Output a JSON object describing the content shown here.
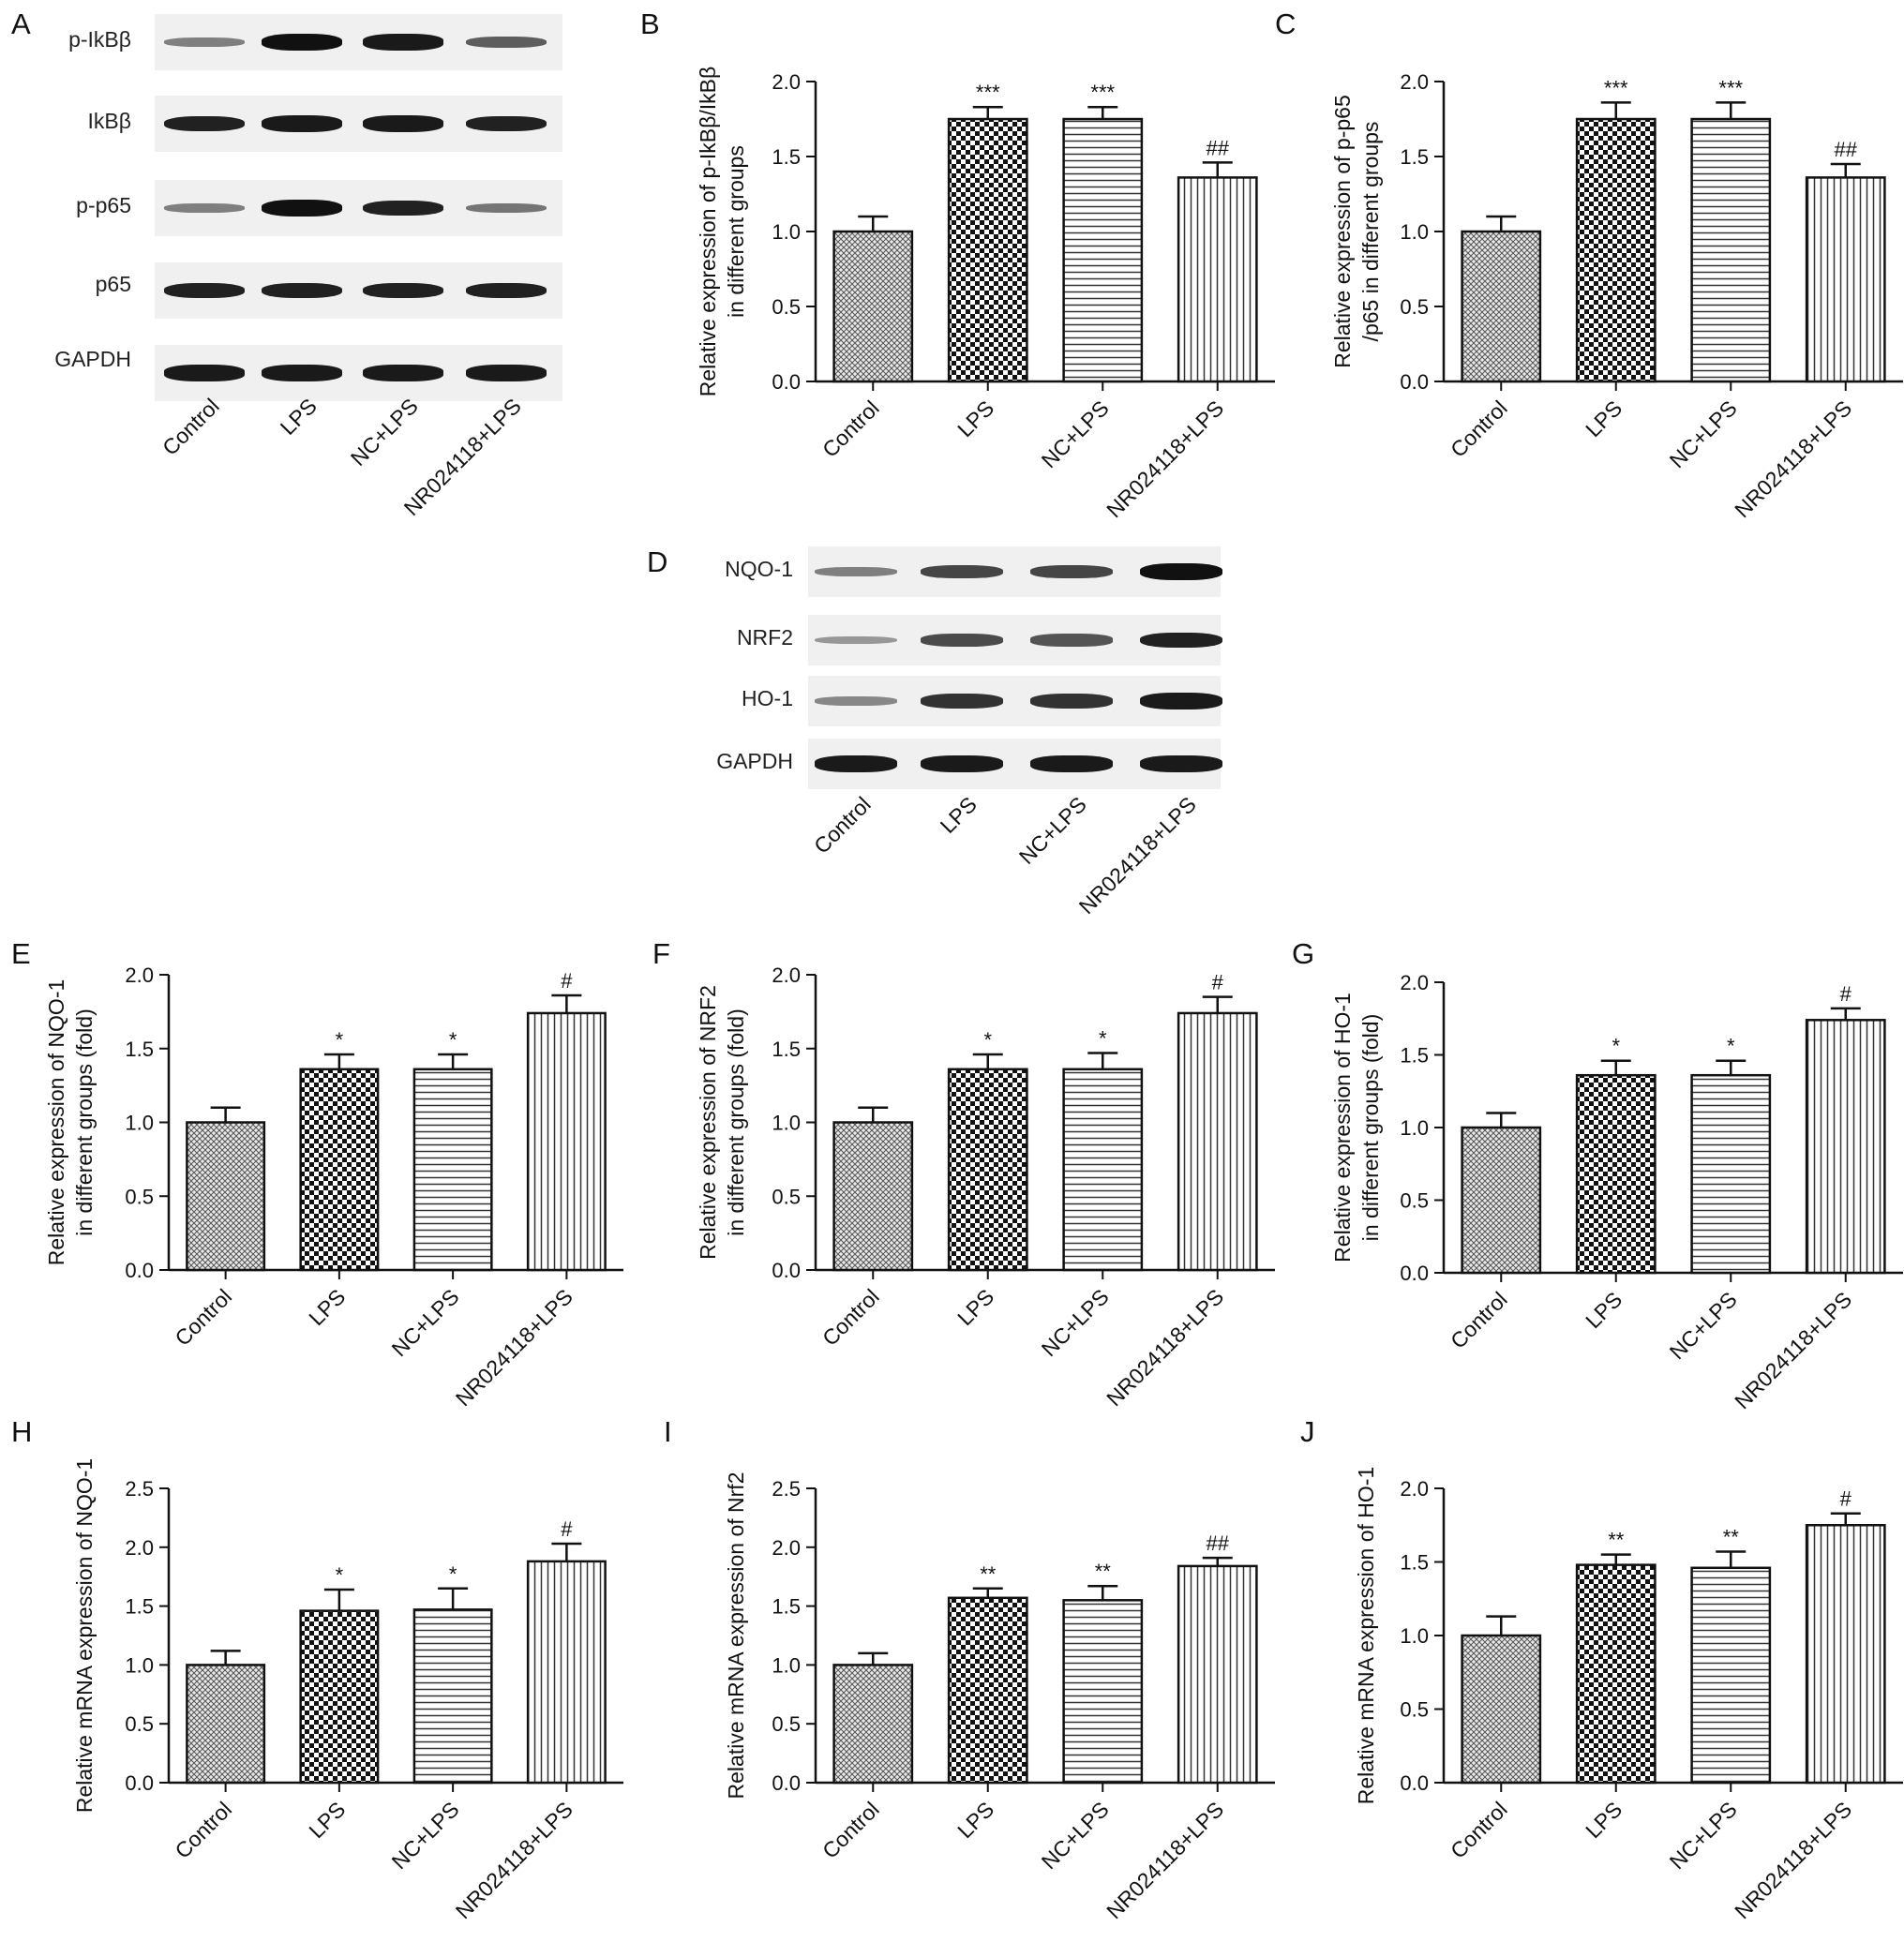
{
  "panels": {
    "A": "A",
    "B": "B",
    "C": "C",
    "D": "D",
    "E": "E",
    "F": "F",
    "G": "G",
    "H": "H",
    "I": "I",
    "J": "J"
  },
  "blot_A": {
    "rows": [
      "p-IkBβ",
      "IkBβ",
      "p-p65",
      "p65",
      "GAPDH"
    ],
    "lanes": [
      "Control",
      "LPS",
      "NC+LPS",
      "NR024118+LPS"
    ],
    "intensity": [
      [
        0.35,
        1.0,
        0.95,
        0.55
      ],
      [
        0.9,
        0.95,
        0.95,
        0.9
      ],
      [
        0.35,
        1.0,
        0.9,
        0.4
      ],
      [
        0.9,
        0.9,
        0.9,
        0.9
      ],
      [
        0.95,
        0.95,
        0.95,
        0.95
      ]
    ]
  },
  "blot_D": {
    "rows": [
      "NQO-1",
      "NRF2",
      "HO-1",
      "GAPDH"
    ],
    "lanes": [
      "Control",
      "LPS",
      "NC+LPS",
      "NR024118+LPS"
    ],
    "intensity": [
      [
        0.35,
        0.7,
        0.7,
        1.0
      ],
      [
        0.2,
        0.65,
        0.6,
        0.9
      ],
      [
        0.3,
        0.8,
        0.8,
        0.95
      ],
      [
        0.95,
        0.95,
        0.95,
        0.95
      ]
    ]
  },
  "colors": {
    "bar_stroke": "#111111",
    "bar_fill": "#ffffff"
  },
  "chart_data": [
    {
      "panel": "B",
      "type": "bar",
      "categories": [
        "Control",
        "LPS",
        "NC+LPS",
        "NR024118+LPS"
      ],
      "values": [
        1.0,
        1.75,
        1.75,
        1.36
      ],
      "errors": [
        0.1,
        0.08,
        0.08,
        0.1
      ],
      "annotations": [
        "",
        "***",
        "***",
        "##"
      ],
      "ylabel_lines": [
        "Relative expression of p-IkBβ/IkBβ",
        "in different groups"
      ],
      "ylim": [
        0,
        2.0
      ],
      "yticks": [
        "0.0",
        "0.5",
        "1.0",
        "1.5",
        "2.0"
      ],
      "patterns": [
        "crosshatch",
        "checker",
        "horizontal",
        "vertical"
      ]
    },
    {
      "panel": "C",
      "type": "bar",
      "categories": [
        "Control",
        "LPS",
        "NC+LPS",
        "NR024118+LPS"
      ],
      "values": [
        1.0,
        1.75,
        1.75,
        1.36
      ],
      "errors": [
        0.1,
        0.11,
        0.11,
        0.09
      ],
      "annotations": [
        "",
        "***",
        "***",
        "##"
      ],
      "ylabel_lines": [
        "Relative expression of p-p65",
        "/p65 in different groups"
      ],
      "ylim": [
        0,
        2.0
      ],
      "yticks": [
        "0.0",
        "0.5",
        "1.0",
        "1.5",
        "2.0"
      ],
      "patterns": [
        "crosshatch",
        "checker",
        "horizontal",
        "vertical"
      ]
    },
    {
      "panel": "E",
      "type": "bar",
      "categories": [
        "Control",
        "LPS",
        "NC+LPS",
        "NR024118+LPS"
      ],
      "values": [
        1.0,
        1.36,
        1.36,
        1.74
      ],
      "errors": [
        0.1,
        0.1,
        0.1,
        0.12
      ],
      "annotations": [
        "",
        "*",
        "*",
        "#"
      ],
      "ylabel_lines": [
        "Relative expression of NQO-1",
        "in different groups (fold)"
      ],
      "ylim": [
        0,
        2.0
      ],
      "yticks": [
        "0.0",
        "0.5",
        "1.0",
        "1.5",
        "2.0"
      ],
      "patterns": [
        "crosshatch",
        "checker",
        "horizontal",
        "vertical"
      ]
    },
    {
      "panel": "F",
      "type": "bar",
      "categories": [
        "Control",
        "LPS",
        "NC+LPS",
        "NR024118+LPS"
      ],
      "values": [
        1.0,
        1.36,
        1.36,
        1.74
      ],
      "errors": [
        0.1,
        0.1,
        0.11,
        0.11
      ],
      "annotations": [
        "",
        "*",
        "*",
        "#"
      ],
      "ylabel_lines": [
        "Relative expression of NRF2",
        "in different groups (fold)"
      ],
      "ylim": [
        0,
        2.0
      ],
      "yticks": [
        "0.0",
        "0.5",
        "1.0",
        "1.5",
        "2.0"
      ],
      "patterns": [
        "crosshatch",
        "checker",
        "horizontal",
        "vertical"
      ]
    },
    {
      "panel": "G",
      "type": "bar",
      "categories": [
        "Control",
        "LPS",
        "NC+LPS",
        "NR024118+LPS"
      ],
      "values": [
        1.0,
        1.36,
        1.36,
        1.74
      ],
      "errors": [
        0.1,
        0.1,
        0.1,
        0.08
      ],
      "annotations": [
        "",
        "*",
        "*",
        "#"
      ],
      "ylabel_lines": [
        "Relative expression of HO-1",
        "in different groups (fold)"
      ],
      "ylim": [
        0,
        2.0
      ],
      "yticks": [
        "0.0",
        "0.5",
        "1.0",
        "1.5",
        "2.0"
      ],
      "patterns": [
        "crosshatch",
        "checker",
        "horizontal",
        "vertical"
      ]
    },
    {
      "panel": "H",
      "type": "bar",
      "categories": [
        "Control",
        "LPS",
        "NC+LPS",
        "NR024118+LPS"
      ],
      "values": [
        1.0,
        1.46,
        1.47,
        1.88
      ],
      "errors": [
        0.12,
        0.18,
        0.18,
        0.15
      ],
      "annotations": [
        "",
        "*",
        "*",
        "#"
      ],
      "ylabel_lines": [
        "Relative mRNA expression of NQO-1"
      ],
      "ylim": [
        0,
        2.5
      ],
      "yticks": [
        "0.0",
        "0.5",
        "1.0",
        "1.5",
        "2.0",
        "2.5"
      ],
      "patterns": [
        "crosshatch",
        "checker",
        "horizontal",
        "vertical"
      ]
    },
    {
      "panel": "I",
      "type": "bar",
      "categories": [
        "Control",
        "LPS",
        "NC+LPS",
        "NR024118+LPS"
      ],
      "values": [
        1.0,
        1.57,
        1.55,
        1.84
      ],
      "errors": [
        0.1,
        0.08,
        0.12,
        0.07
      ],
      "annotations": [
        "",
        "**",
        "**",
        "##"
      ],
      "ylabel_lines": [
        "Relative mRNA expression of Nrf2"
      ],
      "ylim": [
        0,
        2.5
      ],
      "yticks": [
        "0.0",
        "0.5",
        "1.0",
        "1.5",
        "2.0",
        "2.5"
      ],
      "patterns": [
        "crosshatch",
        "checker",
        "horizontal",
        "vertical"
      ]
    },
    {
      "panel": "J",
      "type": "bar",
      "categories": [
        "Control",
        "LPS",
        "NC+LPS",
        "NR024118+LPS"
      ],
      "values": [
        1.0,
        1.48,
        1.46,
        1.75
      ],
      "errors": [
        0.13,
        0.07,
        0.11,
        0.08
      ],
      "annotations": [
        "",
        "**",
        "**",
        "#"
      ],
      "ylabel_lines": [
        "Relative mRNA expression of HO-1"
      ],
      "ylim": [
        0,
        2.0
      ],
      "yticks": [
        "0.0",
        "0.5",
        "1.0",
        "1.5",
        "2.0"
      ],
      "patterns": [
        "crosshatch",
        "checker",
        "horizontal",
        "vertical"
      ]
    }
  ]
}
